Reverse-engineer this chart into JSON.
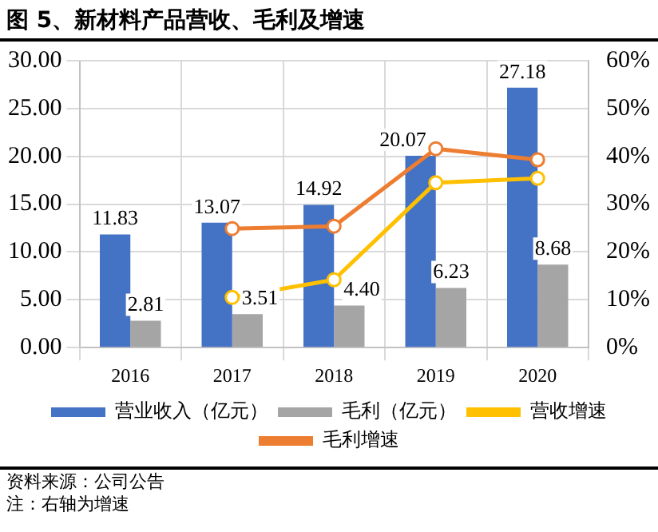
{
  "chart_data": {
    "type": "bar",
    "title": "图 5、新材料产品营收、毛利及增速",
    "categories": [
      "2016",
      "2017",
      "2018",
      "2019",
      "2020"
    ],
    "series": [
      {
        "name": "营业收入（亿元）",
        "color": "#4472c4",
        "values": [
          11.83,
          13.07,
          14.92,
          20.07,
          27.18
        ],
        "value_labels": [
          "11.83",
          "13.07",
          "14.92",
          "20.07",
          "27.18"
        ]
      },
      {
        "name": "毛利（亿元）",
        "color": "#a5a5a5",
        "values": [
          2.81,
          3.51,
          4.4,
          6.23,
          8.68
        ],
        "value_labels": [
          "2.81",
          "3.51",
          "4.40",
          "6.23",
          "8.68"
        ]
      },
      {
        "name": "营收增速",
        "type": "line",
        "axis": "y2",
        "color": "#ffc000",
        "values": [
          null,
          10.5,
          14.2,
          34.5,
          35.4
        ]
      },
      {
        "name": "毛利增速",
        "type": "line",
        "axis": "y2",
        "color": "#ed7d31",
        "values": [
          null,
          24.9,
          25.4,
          41.6,
          39.3
        ]
      }
    ],
    "ylim": [
      0,
      30
    ],
    "yticks": [
      {
        "value": 0,
        "label": "0.00"
      },
      {
        "value": 5,
        "label": "5.00"
      },
      {
        "value": 10,
        "label": "10.00"
      },
      {
        "value": 15,
        "label": "15.00"
      },
      {
        "value": 20,
        "label": "20.00"
      },
      {
        "value": 25,
        "label": "25.00"
      },
      {
        "value": 30,
        "label": "30.00"
      }
    ],
    "y2lim": [
      0,
      60
    ],
    "y2ticks": [
      {
        "value": 0,
        "label": "0%"
      },
      {
        "value": 10,
        "label": "10%"
      },
      {
        "value": 20,
        "label": "20%"
      },
      {
        "value": 30,
        "label": "30%"
      },
      {
        "value": 40,
        "label": "40%"
      },
      {
        "value": 50,
        "label": "50%"
      },
      {
        "value": 60,
        "label": "60%"
      }
    ],
    "grid": true,
    "legend": "bottom",
    "marker": "circle",
    "line_style": "solid",
    "annotations": [
      "资料来源：公司公告",
      "注：右轴为增速"
    ]
  }
}
